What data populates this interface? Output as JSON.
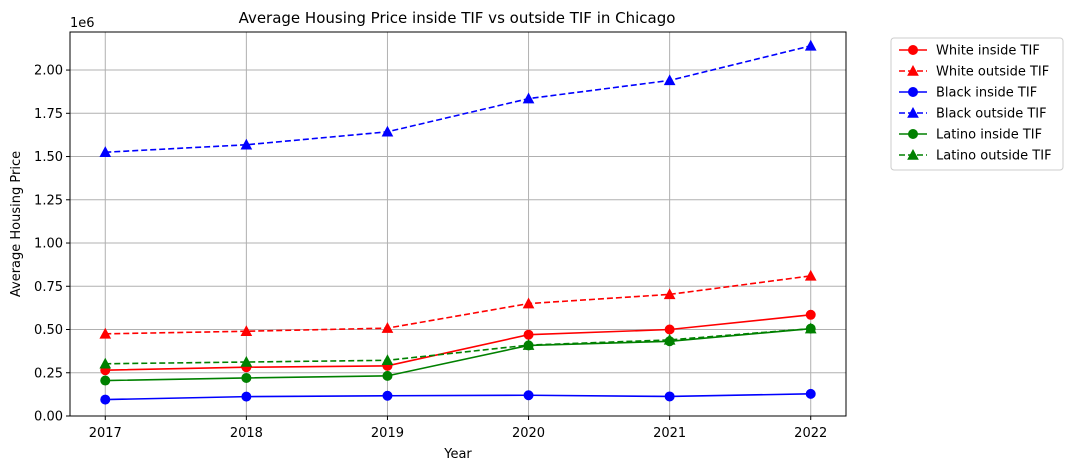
{
  "chart_data": {
    "type": "line",
    "title": "Average Housing Price inside TIF vs outside TIF in Chicago",
    "xlabel": "Year",
    "ylabel": "Average Housing Price",
    "y_offset_label": "1e6",
    "x": [
      2017,
      2018,
      2019,
      2020,
      2021,
      2022
    ],
    "x_tick_labels": [
      "2017",
      "2018",
      "2019",
      "2020",
      "2021",
      "2022"
    ],
    "y_ticks": [
      0,
      0.25,
      0.5,
      0.75,
      1.0,
      1.25,
      1.5,
      1.75,
      2.0
    ],
    "y_tick_labels": [
      "0.00",
      "0.25",
      "0.50",
      "0.75",
      "1.00",
      "1.25",
      "1.50",
      "1.75",
      "2.00"
    ],
    "xlim": [
      2016.75,
      2022.25
    ],
    "ylim": [
      0,
      2.22
    ],
    "grid": true,
    "legend_position": "outside-top-right",
    "series": [
      {
        "name": "White inside TIF",
        "color": "#ff0000",
        "dash": "solid",
        "marker": "circle",
        "values": [
          0.265,
          0.282,
          0.29,
          0.47,
          0.5,
          0.585
        ]
      },
      {
        "name": "White outside TIF",
        "color": "#ff0000",
        "dash": "dashed",
        "marker": "triangle",
        "values": [
          0.475,
          0.49,
          0.508,
          0.65,
          0.703,
          0.81
        ]
      },
      {
        "name": "Black inside TIF",
        "color": "#0000ff",
        "dash": "solid",
        "marker": "circle",
        "values": [
          0.095,
          0.112,
          0.117,
          0.12,
          0.113,
          0.128
        ]
      },
      {
        "name": "Black outside TIF",
        "color": "#0000ff",
        "dash": "dashed",
        "marker": "triangle",
        "values": [
          1.525,
          1.568,
          1.643,
          1.835,
          1.94,
          2.14
        ]
      },
      {
        "name": "Latino inside TIF",
        "color": "#008000",
        "dash": "solid",
        "marker": "circle",
        "values": [
          0.205,
          0.22,
          0.232,
          0.408,
          0.432,
          0.505
        ]
      },
      {
        "name": "Latino outside TIF",
        "color": "#008000",
        "dash": "dashed",
        "marker": "triangle",
        "values": [
          0.302,
          0.312,
          0.322,
          0.41,
          0.44,
          0.505
        ]
      }
    ]
  }
}
